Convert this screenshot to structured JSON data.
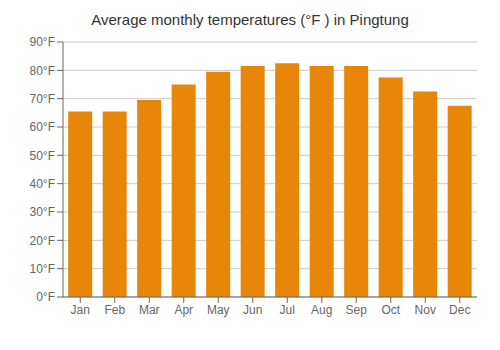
{
  "chart_data": {
    "type": "bar",
    "title": "Average monthly temperatures (°F ) in Pingtung",
    "categories": [
      "Jan",
      "Feb",
      "Mar",
      "Apr",
      "May",
      "Jun",
      "Jul",
      "Aug",
      "Sep",
      "Oct",
      "Nov",
      "Dec"
    ],
    "values": [
      65.5,
      65.5,
      69.5,
      75.0,
      79.5,
      81.5,
      82.5,
      81.5,
      81.5,
      77.5,
      72.5,
      67.5
    ],
    "color": "#E8860A",
    "ylim": [
      0,
      90
    ],
    "yticks": [
      {
        "value": 0,
        "label": "0°F"
      },
      {
        "value": 10,
        "label": "10°F"
      },
      {
        "value": 20,
        "label": "20°F"
      },
      {
        "value": 30,
        "label": "30°F"
      },
      {
        "value": 40,
        "label": "40°F"
      },
      {
        "value": 50,
        "label": "50°F"
      },
      {
        "value": 60,
        "label": "60°F"
      },
      {
        "value": 70,
        "label": "70°F"
      },
      {
        "value": 80,
        "label": "80°F"
      },
      {
        "value": 90,
        "label": "90°F"
      }
    ],
    "grid": true
  }
}
